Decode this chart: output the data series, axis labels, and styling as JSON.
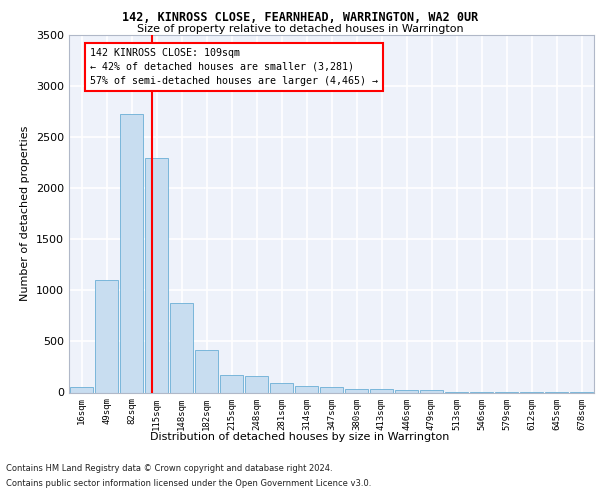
{
  "title": "142, KINROSS CLOSE, FEARNHEAD, WARRINGTON, WA2 0UR",
  "subtitle": "Size of property relative to detached houses in Warrington",
  "xlabel": "Distribution of detached houses by size in Warrington",
  "ylabel": "Number of detached properties",
  "bar_color": "#c8ddf0",
  "bar_edge_color": "#6aaed6",
  "background_color": "#eef2fa",
  "grid_color": "#ffffff",
  "categories": [
    "16sqm",
    "49sqm",
    "82sqm",
    "115sqm",
    "148sqm",
    "182sqm",
    "215sqm",
    "248sqm",
    "281sqm",
    "314sqm",
    "347sqm",
    "380sqm",
    "413sqm",
    "446sqm",
    "479sqm",
    "513sqm",
    "546sqm",
    "579sqm",
    "612sqm",
    "645sqm",
    "678sqm"
  ],
  "values": [
    50,
    1100,
    2730,
    2300,
    880,
    420,
    170,
    160,
    90,
    65,
    55,
    30,
    30,
    20,
    20,
    5,
    5,
    3,
    2,
    2,
    2
  ],
  "ylim": [
    0,
    3500
  ],
  "yticks": [
    0,
    500,
    1000,
    1500,
    2000,
    2500,
    3000,
    3500
  ],
  "property_label": "142 KINROSS CLOSE: 109sqm",
  "arrow_left_text": "← 42% of detached houses are smaller (3,281)",
  "arrow_right_text": "57% of semi-detached houses are larger (4,465) →",
  "footer_line1": "Contains HM Land Registry data © Crown copyright and database right 2024.",
  "footer_line2": "Contains public sector information licensed under the Open Government Licence v3.0."
}
